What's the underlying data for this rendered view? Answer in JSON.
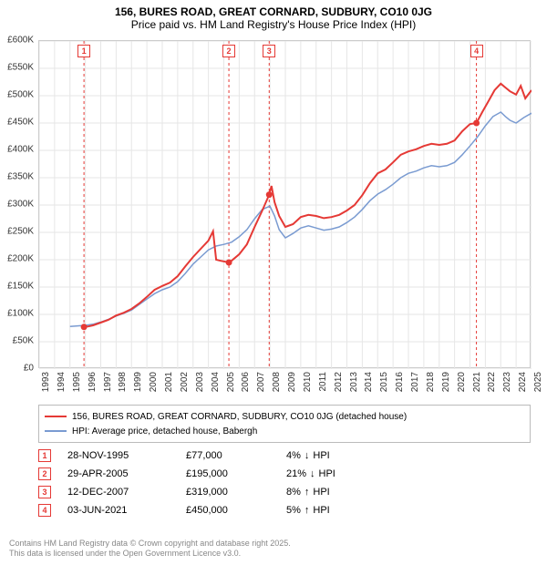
{
  "title": {
    "line1": "156, BURES ROAD, GREAT CORNARD, SUDBURY, CO10 0JG",
    "line2": "Price paid vs. HM Land Registry's House Price Index (HPI)",
    "fontsize": 12,
    "color": "#000000"
  },
  "chart": {
    "type": "line",
    "plot_bg": "#ffffff",
    "grid_color": "#e6e6e6",
    "axis_color": "#cccccc",
    "axis_label_color": "#333333",
    "axis_label_fontsize": 10,
    "ylim": [
      0,
      600000
    ],
    "ytick_step": 50000,
    "yticks": [
      "£0",
      "£50K",
      "£100K",
      "£150K",
      "£200K",
      "£250K",
      "£300K",
      "£350K",
      "£400K",
      "£450K",
      "£500K",
      "£550K",
      "£600K"
    ],
    "xlim": [
      1993,
      2025
    ],
    "xticks": [
      1993,
      1994,
      1995,
      1996,
      1997,
      1998,
      1999,
      2000,
      2001,
      2002,
      2003,
      2004,
      2005,
      2006,
      2007,
      2008,
      2009,
      2010,
      2011,
      2012,
      2013,
      2014,
      2015,
      2016,
      2017,
      2018,
      2019,
      2020,
      2021,
      2022,
      2023,
      2024,
      2025
    ],
    "series": [
      {
        "name": "156, BURES ROAD, GREAT CORNARD, SUDBURY, CO10 0JG (detached house)",
        "color": "#e53935",
        "line_width": 2,
        "data": [
          [
            1995.9,
            77000
          ],
          [
            1996.2,
            78000
          ],
          [
            1996.5,
            80000
          ],
          [
            1997,
            85000
          ],
          [
            1997.5,
            90000
          ],
          [
            1998,
            98000
          ],
          [
            1998.5,
            103000
          ],
          [
            1999,
            110000
          ],
          [
            1999.5,
            120000
          ],
          [
            2000,
            132000
          ],
          [
            2000.5,
            145000
          ],
          [
            2001,
            152000
          ],
          [
            2001.5,
            158000
          ],
          [
            2002,
            170000
          ],
          [
            2002.5,
            188000
          ],
          [
            2003,
            205000
          ],
          [
            2003.5,
            220000
          ],
          [
            2004,
            235000
          ],
          [
            2004.3,
            252000
          ],
          [
            2004.5,
            200000
          ],
          [
            2004.8,
            198000
          ],
          [
            2005.33,
            195000
          ],
          [
            2005.5,
            198000
          ],
          [
            2006,
            210000
          ],
          [
            2006.5,
            228000
          ],
          [
            2007,
            260000
          ],
          [
            2007.5,
            290000
          ],
          [
            2007.95,
            319000
          ],
          [
            2008.1,
            335000
          ],
          [
            2008.3,
            305000
          ],
          [
            2008.6,
            280000
          ],
          [
            2009,
            260000
          ],
          [
            2009.5,
            265000
          ],
          [
            2010,
            278000
          ],
          [
            2010.5,
            282000
          ],
          [
            2011,
            280000
          ],
          [
            2011.5,
            276000
          ],
          [
            2012,
            278000
          ],
          [
            2012.5,
            282000
          ],
          [
            2013,
            290000
          ],
          [
            2013.5,
            300000
          ],
          [
            2014,
            318000
          ],
          [
            2014.5,
            340000
          ],
          [
            2015,
            358000
          ],
          [
            2015.5,
            365000
          ],
          [
            2016,
            378000
          ],
          [
            2016.5,
            392000
          ],
          [
            2017,
            398000
          ],
          [
            2017.5,
            402000
          ],
          [
            2018,
            408000
          ],
          [
            2018.5,
            412000
          ],
          [
            2019,
            410000
          ],
          [
            2019.5,
            412000
          ],
          [
            2020,
            418000
          ],
          [
            2020.5,
            435000
          ],
          [
            2021,
            448000
          ],
          [
            2021.42,
            450000
          ],
          [
            2021.8,
            470000
          ],
          [
            2022.2,
            490000
          ],
          [
            2022.6,
            510000
          ],
          [
            2023,
            522000
          ],
          [
            2023.3,
            515000
          ],
          [
            2023.6,
            508000
          ],
          [
            2024,
            502000
          ],
          [
            2024.3,
            518000
          ],
          [
            2024.6,
            495000
          ],
          [
            2025,
            510000
          ]
        ]
      },
      {
        "name": "HPI: Average price, detached house, Babergh",
        "color": "#7a9bd1",
        "line_width": 1.5,
        "data": [
          [
            1995,
            78000
          ],
          [
            1995.5,
            79000
          ],
          [
            1996,
            80000
          ],
          [
            1996.5,
            82000
          ],
          [
            1997,
            86000
          ],
          [
            1997.5,
            91000
          ],
          [
            1998,
            97000
          ],
          [
            1998.5,
            102000
          ],
          [
            1999,
            108000
          ],
          [
            1999.5,
            118000
          ],
          [
            2000,
            128000
          ],
          [
            2000.5,
            138000
          ],
          [
            2001,
            145000
          ],
          [
            2001.5,
            150000
          ],
          [
            2002,
            160000
          ],
          [
            2002.5,
            175000
          ],
          [
            2003,
            192000
          ],
          [
            2003.5,
            205000
          ],
          [
            2004,
            218000
          ],
          [
            2004.5,
            225000
          ],
          [
            2005,
            228000
          ],
          [
            2005.5,
            232000
          ],
          [
            2006,
            242000
          ],
          [
            2006.5,
            255000
          ],
          [
            2007,
            275000
          ],
          [
            2007.5,
            292000
          ],
          [
            2008,
            298000
          ],
          [
            2008.3,
            280000
          ],
          [
            2008.6,
            255000
          ],
          [
            2009,
            240000
          ],
          [
            2009.5,
            248000
          ],
          [
            2010,
            258000
          ],
          [
            2010.5,
            262000
          ],
          [
            2011,
            258000
          ],
          [
            2011.5,
            254000
          ],
          [
            2012,
            256000
          ],
          [
            2012.5,
            260000
          ],
          [
            2013,
            268000
          ],
          [
            2013.5,
            278000
          ],
          [
            2014,
            292000
          ],
          [
            2014.5,
            308000
          ],
          [
            2015,
            320000
          ],
          [
            2015.5,
            328000
          ],
          [
            2016,
            338000
          ],
          [
            2016.5,
            350000
          ],
          [
            2017,
            358000
          ],
          [
            2017.5,
            362000
          ],
          [
            2018,
            368000
          ],
          [
            2018.5,
            372000
          ],
          [
            2019,
            370000
          ],
          [
            2019.5,
            372000
          ],
          [
            2020,
            378000
          ],
          [
            2020.5,
            392000
          ],
          [
            2021,
            408000
          ],
          [
            2021.5,
            425000
          ],
          [
            2022,
            445000
          ],
          [
            2022.5,
            462000
          ],
          [
            2023,
            470000
          ],
          [
            2023.3,
            462000
          ],
          [
            2023.6,
            455000
          ],
          [
            2024,
            450000
          ],
          [
            2024.5,
            460000
          ],
          [
            2025,
            468000
          ]
        ]
      }
    ],
    "event_markers": [
      {
        "n": 1,
        "x": 1995.91,
        "price": 77000
      },
      {
        "n": 2,
        "x": 2005.33,
        "price": 195000
      },
      {
        "n": 3,
        "x": 2007.95,
        "price": 319000
      },
      {
        "n": 4,
        "x": 2021.42,
        "price": 450000
      }
    ],
    "event_line_color": "#e53935",
    "event_line_dash": "3,3",
    "event_point_color": "#e53935",
    "event_point_radius": 3.5,
    "event_badge_border": "#e53935",
    "event_badge_text_color": "#e53935"
  },
  "legend": {
    "border_color": "#bbbbbb",
    "fontsize": 10,
    "items": [
      {
        "color": "#e53935",
        "width": 2,
        "label": "156, BURES ROAD, GREAT CORNARD, SUDBURY, CO10 0JG (detached house)"
      },
      {
        "color": "#7a9bd1",
        "width": 1.5,
        "label": "HPI: Average price, detached house, Babergh"
      }
    ]
  },
  "events": {
    "badge_border": "#e53935",
    "badge_text_color": "#e53935",
    "fontsize": 11,
    "rows": [
      {
        "n": "1",
        "date": "28-NOV-1995",
        "price": "£77,000",
        "diff_pct": "4%",
        "arrow": "↓",
        "vs": "HPI"
      },
      {
        "n": "2",
        "date": "29-APR-2005",
        "price": "£195,000",
        "diff_pct": "21%",
        "arrow": "↓",
        "vs": "HPI"
      },
      {
        "n": "3",
        "date": "12-DEC-2007",
        "price": "£319,000",
        "diff_pct": "8%",
        "arrow": "↑",
        "vs": "HPI"
      },
      {
        "n": "4",
        "date": "03-JUN-2021",
        "price": "£450,000",
        "diff_pct": "5%",
        "arrow": "↑",
        "vs": "HPI"
      }
    ]
  },
  "footer": {
    "line1": "Contains HM Land Registry data © Crown copyright and database right 2025.",
    "line2": "This data is licensed under the Open Government Licence v3.0.",
    "color": "#888888",
    "fontsize": 9
  }
}
